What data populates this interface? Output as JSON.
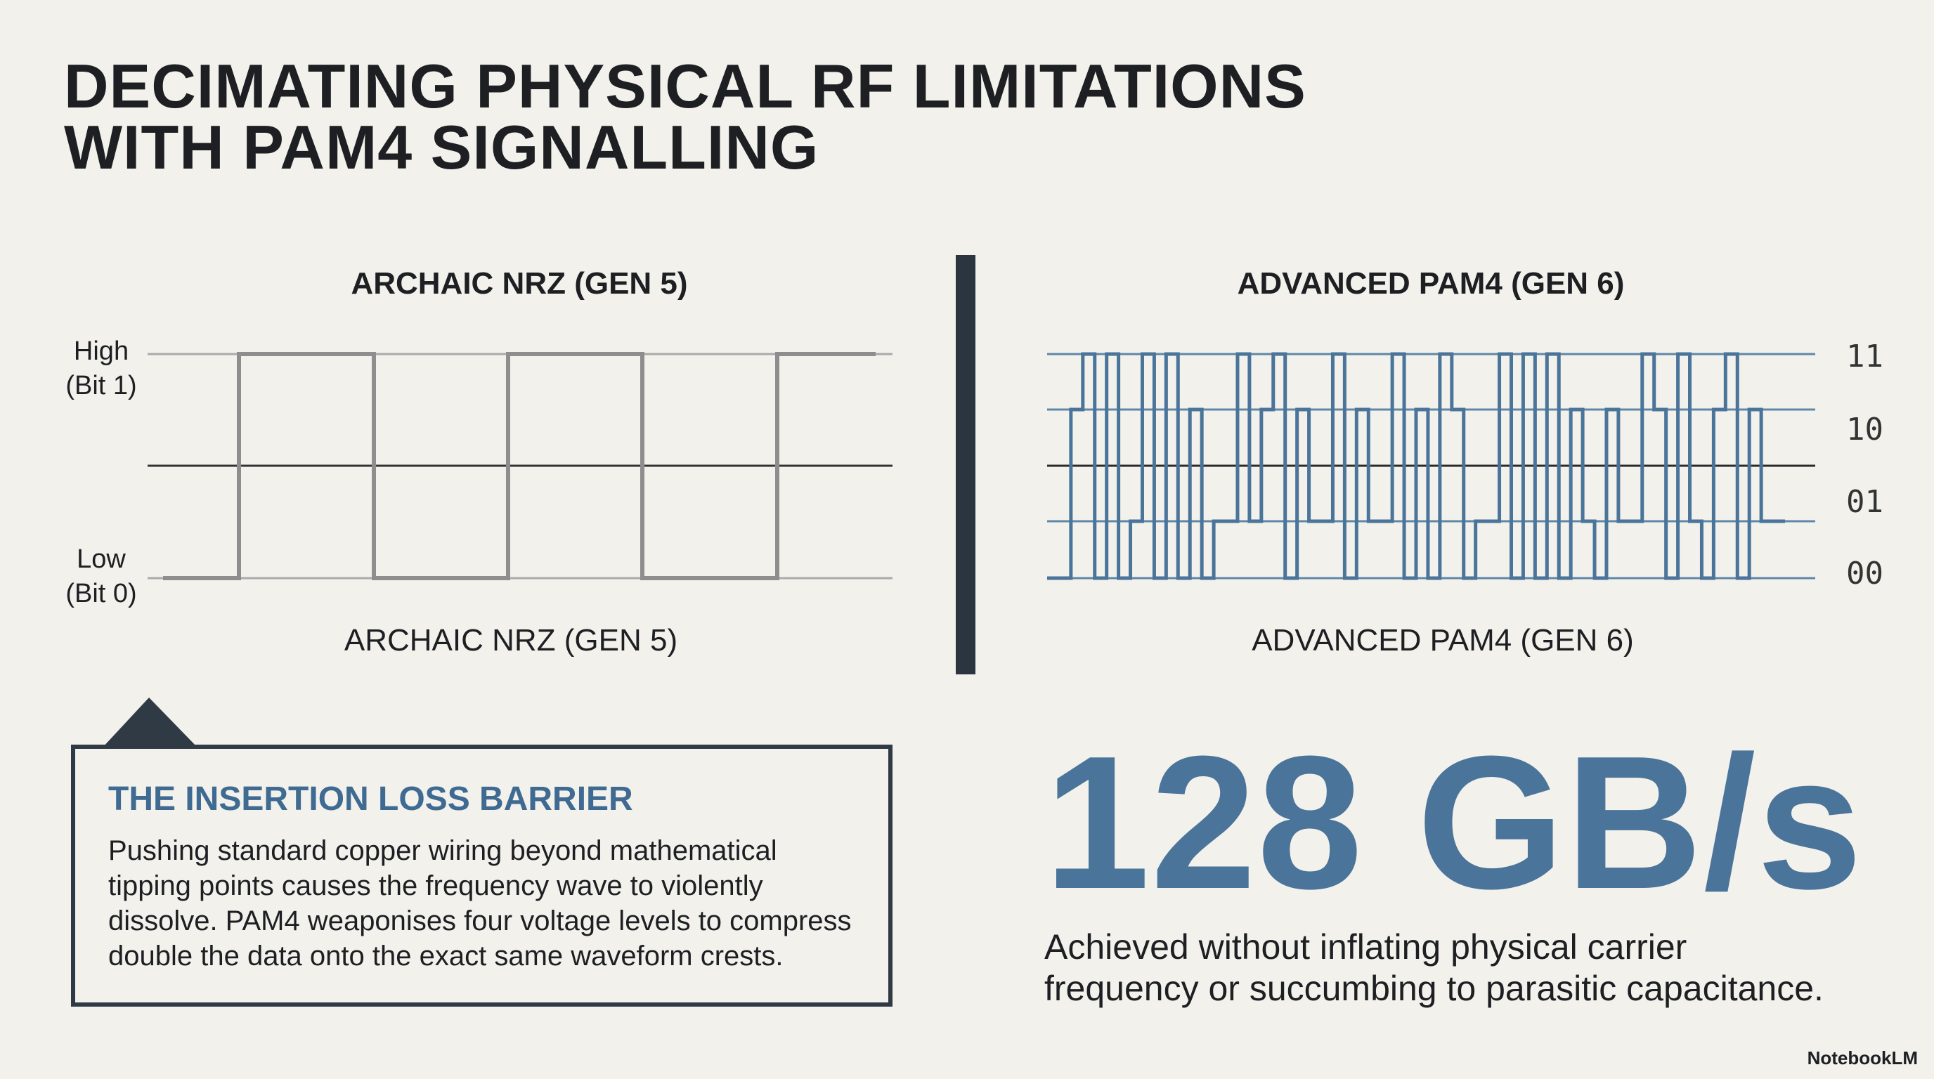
{
  "title_lines": [
    "DECIMATING PHYSICAL RF LIMITATIONS",
    "WITH PAM4 SIGNALLING"
  ],
  "nrz": {
    "heading": "ARCHAIC NRZ (GEN 5)",
    "high_label": [
      "High",
      "(Bit 1)"
    ],
    "low_label": [
      "Low",
      "(Bit 0)"
    ],
    "caption": "ARCHAIC NRZ (GEN 5)"
  },
  "pam4": {
    "heading": "ADVANCED PAM4 (GEN 6)",
    "level_labels": [
      "11",
      "10",
      "01",
      "00"
    ],
    "caption": "ADVANCED PAM4 (GEN 6)"
  },
  "callout": {
    "title": "THE INSERTION LOSS BARRIER",
    "body_lines": [
      "Pushing standard copper wiring beyond mathematical",
      "tipping points causes the frequency wave to violently",
      "dissolve. PAM4 weaponises four voltage levels to compress",
      "double the data onto the exact same waveform crests."
    ]
  },
  "stat": {
    "value": "128 GB/s",
    "caption_lines": [
      "Achieved without inflating physical carrier",
      "frequency or succumbing to parasitic capacitance."
    ]
  },
  "brand": "NotebookLM"
}
